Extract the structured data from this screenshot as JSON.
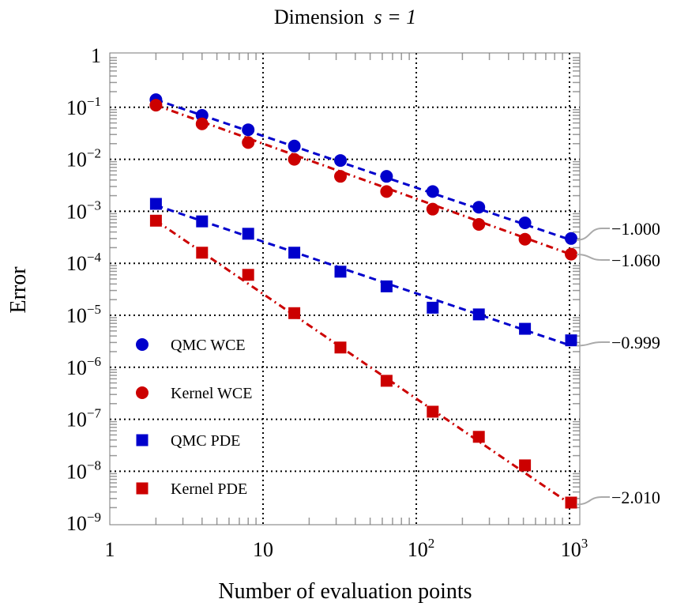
{
  "chart_data": {
    "type": "scatter",
    "title": {
      "text": "Dimension",
      "math": "s = 1"
    },
    "xlabel": "Number of evaluation points",
    "ylabel": "Error",
    "xscale": "log",
    "yscale": "log",
    "xlim": [
      1,
      1500
    ],
    "ylim": [
      1e-09,
      1
    ],
    "grid": "dotted, major decades",
    "legend_position": "bottom-left",
    "x_ticks": [
      {
        "base": "1",
        "exp": ""
      },
      {
        "base": "10",
        "exp": ""
      },
      {
        "base": "10",
        "exp": "2"
      },
      {
        "base": "10",
        "exp": "3"
      }
    ],
    "x_tick_values": [
      1,
      10,
      100,
      1000
    ],
    "y_ticks": [
      {
        "base": "1",
        "exp": ""
      },
      {
        "base": "10",
        "exp": "−1"
      },
      {
        "base": "10",
        "exp": "−2"
      },
      {
        "base": "10",
        "exp": "−3"
      },
      {
        "base": "10",
        "exp": "−4"
      },
      {
        "base": "10",
        "exp": "−5"
      },
      {
        "base": "10",
        "exp": "−6"
      },
      {
        "base": "10",
        "exp": "−7"
      },
      {
        "base": "10",
        "exp": "−8"
      },
      {
        "base": "10",
        "exp": "−9"
      }
    ],
    "y_tick_values": [
      1,
      0.1,
      0.01,
      0.001,
      0.0001,
      1e-05,
      1e-06,
      1e-07,
      1e-08,
      1e-09
    ],
    "x": [
      2,
      4,
      8,
      16,
      32,
      64,
      128,
      256,
      512,
      1024
    ],
    "series": [
      {
        "name": "QMC WCE",
        "color": "#0000cc",
        "marker": "circle",
        "line": "dashed",
        "values": [
          0.14,
          0.07,
          0.037,
          0.018,
          0.0095,
          0.0047,
          0.0024,
          0.0012,
          0.0006,
          0.0003
        ],
        "fit": {
          "x": [
            2,
            1024
          ],
          "y": [
            0.14,
            0.00028
          ]
        },
        "slope_label": "−1.000"
      },
      {
        "name": "Kernel WCE",
        "color": "#cc0000",
        "marker": "circle",
        "line": "dash-dot",
        "values": [
          0.11,
          0.048,
          0.021,
          0.01,
          0.0047,
          0.0024,
          0.0011,
          0.00056,
          0.00029,
          0.00015
        ],
        "fit": {
          "x": [
            2,
            1024
          ],
          "y": [
            0.11,
            0.000148
          ]
        },
        "slope_label": "−1.060"
      },
      {
        "name": "QMC PDE",
        "color": "#0000cc",
        "marker": "square",
        "line": "dashed",
        "values": [
          0.00139,
          0.00064,
          0.00037,
          0.00016,
          6.9e-05,
          3.6e-05,
          1.4e-05,
          1.04e-05,
          5.5e-06,
          3.3e-06
        ],
        "fit": {
          "x": [
            2,
            1024
          ],
          "y": [
            0.0013,
            2.6e-06
          ]
        },
        "slope_label": "−0.999"
      },
      {
        "name": "Kernel PDE",
        "color": "#cc0000",
        "marker": "square",
        "line": "dash-dot",
        "values": [
          0.00066,
          0.00016,
          6e-05,
          1.1e-05,
          2.4e-06,
          5.5e-07,
          1.4e-07,
          4.6e-08,
          1.3e-08,
          2.5e-09
        ],
        "fit": {
          "x": [
            2,
            1024
          ],
          "y": [
            0.00066,
            2.3e-09
          ]
        },
        "slope_label": "−2.010"
      }
    ]
  }
}
